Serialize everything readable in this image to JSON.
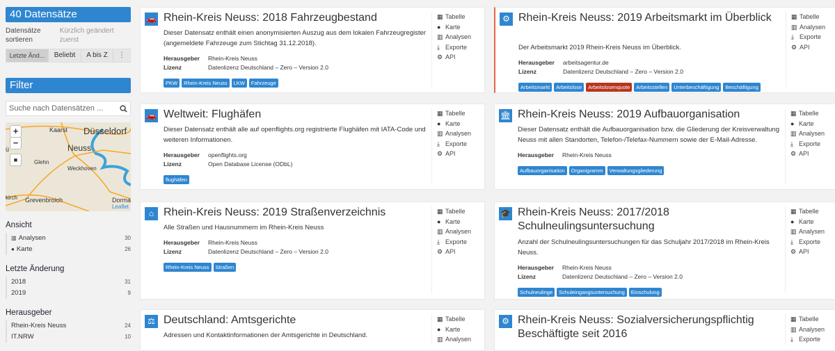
{
  "sidebar": {
    "count_title": "40 Datensätze",
    "sort_label": "Datensätze sortieren",
    "sort_value": "Kürzlich geändert zuerst",
    "sort_buttons": [
      "Letzte Änd...",
      "Beliebt",
      "A bis Z",
      "⋮"
    ],
    "filter_title": "Filter",
    "search_placeholder": "Suche nach Datensätzen ...",
    "map": {
      "zoom_in": "+",
      "zoom_out": "−",
      "draw": "■",
      "attribution": "Leaflet",
      "places": [
        "Kaarst",
        "Düsseldorf",
        "Neuss",
        "Glehn",
        "Weckhoven",
        "Grevenbroich",
        "Dormag",
        "kirch",
        "ü"
      ]
    },
    "sections": [
      {
        "title": "Ansicht",
        "items": [
          {
            "icon": "bar-chart-icon",
            "label": "Analysen",
            "count": "30"
          },
          {
            "icon": "globe-icon",
            "label": "Karte",
            "count": "26"
          }
        ]
      },
      {
        "title": "Letzte Änderung",
        "items": [
          {
            "label": "2018",
            "count": "31"
          },
          {
            "label": "2019",
            "count": "9"
          }
        ]
      },
      {
        "title": "Herausgeber",
        "items": [
          {
            "label": "Rhein-Kreis Neuss",
            "count": "24"
          },
          {
            "label": "IT.NRW",
            "count": "10"
          }
        ]
      }
    ]
  },
  "labels": {
    "publisher": "Herausgeber",
    "license": "Lizenz"
  },
  "colors": {
    "accent": "#2f86d0",
    "highlight_tag": "#b8351f",
    "highlight_border": "#e8654a"
  },
  "cards": [
    {
      "icon": "car-icon",
      "title": "Rhein-Kreis Neuss: 2018 Fahrzeugbestand",
      "desc": "Dieser Datensatz enthält einen anonymisierten Auszug aus dem lokalen Fahrzeugregister (angemeldete Fahrzeuge zum Stichtag 31.12.2018).",
      "publisher": "Rhein-Kreis Neuss",
      "license": "Datenlizenz Deutschland – Zero – Version 2.0",
      "tags": [
        "PKW",
        "Rhein-Kreis Neuss",
        "LKW",
        "Fahrzeuge"
      ],
      "actions": [
        "Tabelle",
        "Karte",
        "Analysen",
        "Exporte",
        "API"
      ]
    },
    {
      "icon": "cogs-icon",
      "title": "Rhein-Kreis Neuss: 2019 Arbeitsmarkt im Überblick",
      "desc": "Der Arbeitsmarkt 2019 Rhein-Kreis Neuss im Überblick.",
      "publisher": "arbeitsagentur.de",
      "license": "Datenlizenz Deutschland – Zero – Version 2.0",
      "tags": [
        "Arbeitsmarkt",
        "Arbeitslose",
        "Arbeitslosenquote",
        "Arbeitsstellen",
        "Unterbeschäftigung",
        "Beschäftigung"
      ],
      "highlighted_tag": "Arbeitslosenquote",
      "highlighted": true,
      "actions": [
        "Tabelle",
        "Analysen",
        "Exporte",
        "API"
      ]
    },
    {
      "icon": "car-icon",
      "title": "Weltweit: Flughäfen",
      "desc": "Dieser Datensatz enthält alle auf openflights.org registrierte Flughäfen mit IATA-Code und weiteren Informationen.",
      "publisher": "openflights.org",
      "license": "Open Database License (ODbL)",
      "tags": [
        "flughäfen"
      ],
      "actions": [
        "Tabelle",
        "Karte",
        "Analysen",
        "Exporte",
        "API"
      ]
    },
    {
      "icon": "institution-icon",
      "title": "Rhein-Kreis Neuss: 2019 Aufbauorganisation",
      "desc": "Dieser Datensatz enthält die Aufbauorganisation bzw. die Gliederung der Kreisverwaltung Neuss mit allen Standorten, Telefon-/Telefax-Nummern sowie der E-Mail-Adresse.",
      "publisher": "Rhein-Kreis Neuss",
      "tags": [
        "Aufbauorganisation",
        "Organigramm",
        "Verwaltungsgliederung"
      ],
      "actions": [
        "Tabelle",
        "Karte",
        "Analysen",
        "Exporte",
        "API"
      ]
    },
    {
      "icon": "home-icon",
      "title": "Rhein-Kreis Neuss: 2019 Straßenverzeichnis",
      "desc": "Alle Straßen und Hausnummern im Rhein-Kreis Neuss",
      "publisher": "Rhein-Kreis Neuss",
      "license": "Datenlizenz Deutschland – Zero – Version 2.0",
      "tags": [
        "Rhein-Kreis Neuss",
        "Straßen"
      ],
      "actions": [
        "Tabelle",
        "Karte",
        "Analysen",
        "Exporte",
        "API"
      ]
    },
    {
      "icon": "graduation-cap-icon",
      "title": "Rhein-Kreis Neuss: 2017/2018 Schulneulingsuntersuchung",
      "desc": "Anzahl der Schulneulingsuntersuchungen für das Schuljahr 2017/2018 im Rhein-Kreis Neuss.",
      "publisher": "Rhein-Kreis Neuss",
      "license": "Datenlizenz Deutschland – Zero – Version 2.0",
      "tags": [
        "Schulneulinge",
        "Schuleingangsuntersuchung",
        "Einschulung"
      ],
      "actions": [
        "Tabelle",
        "Karte",
        "Analysen",
        "Exporte",
        "API"
      ]
    },
    {
      "icon": "gavel-icon",
      "title": "Deutschland: Amtsgerichte",
      "desc": "Adressen und Kontaktinformationen der Amtsgerichte in Deutschland.",
      "tags": [],
      "actions": [
        "Tabelle",
        "Karte",
        "Analysen"
      ]
    },
    {
      "icon": "cogs-icon",
      "title": "Rhein-Kreis Neuss: Sozialversicherungspflichtig Beschäftigte seit 2016",
      "tags": [],
      "actions": [
        "Tabelle",
        "Analysen",
        "Exporte"
      ]
    }
  ]
}
